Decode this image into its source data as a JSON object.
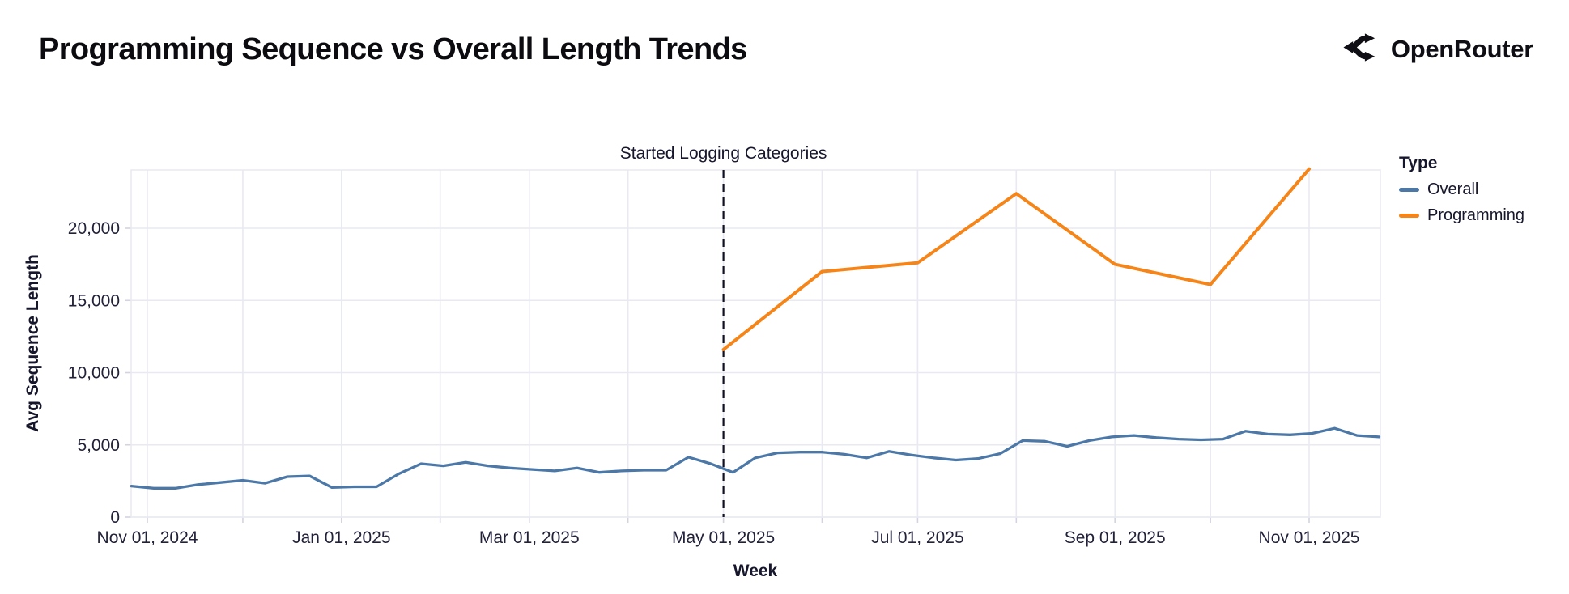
{
  "header": {
    "title": "Programming Sequence vs Overall Length Trends",
    "brand": "OpenRouter"
  },
  "chart_data": {
    "type": "line",
    "title": "Programming Sequence vs Overall Length Trends",
    "xlabel": "Week",
    "ylabel": "Avg Sequence Length",
    "ylim": [
      0,
      24100
    ],
    "grid": true,
    "legend_position": "right",
    "legend": {
      "title": "Type",
      "items": [
        {
          "label": "Overall",
          "color": "#4c78a8"
        },
        {
          "label": "Programming",
          "color": "#f58518"
        }
      ]
    },
    "annotation": {
      "text": "Started Logging Categories",
      "date": "2025-05-01"
    },
    "x_ticks": [
      {
        "date": "2024-11-01",
        "label": "Nov 01, 2024"
      },
      {
        "date": "2025-01-01",
        "label": "Jan 01, 2025"
      },
      {
        "date": "2025-03-01",
        "label": "Mar 01, 2025"
      },
      {
        "date": "2025-05-01",
        "label": "May 01, 2025"
      },
      {
        "date": "2025-07-01",
        "label": "Jul 01, 2025"
      },
      {
        "date": "2025-09-01",
        "label": "Sep 01, 2025"
      },
      {
        "date": "2025-11-01",
        "label": "Nov 01, 2025"
      }
    ],
    "y_ticks": [
      {
        "value": 0,
        "label": "0"
      },
      {
        "value": 5000,
        "label": "5,000"
      },
      {
        "value": 10000,
        "label": "10,000"
      },
      {
        "value": 15000,
        "label": "15,000"
      },
      {
        "value": 20000,
        "label": "20,000"
      }
    ],
    "series": [
      {
        "name": "Overall",
        "color": "#4c78a8",
        "points": [
          {
            "date": "2024-10-27",
            "value": 2150
          },
          {
            "date": "2024-11-03",
            "value": 2000
          },
          {
            "date": "2024-11-10",
            "value": 2000
          },
          {
            "date": "2024-11-17",
            "value": 2250
          },
          {
            "date": "2024-11-24",
            "value": 2400
          },
          {
            "date": "2024-12-01",
            "value": 2550
          },
          {
            "date": "2024-12-08",
            "value": 2350
          },
          {
            "date": "2024-12-15",
            "value": 2800
          },
          {
            "date": "2024-12-22",
            "value": 2850
          },
          {
            "date": "2024-12-29",
            "value": 2050
          },
          {
            "date": "2025-01-05",
            "value": 2100
          },
          {
            "date": "2025-01-12",
            "value": 2100
          },
          {
            "date": "2025-01-19",
            "value": 3000
          },
          {
            "date": "2025-01-26",
            "value": 3700
          },
          {
            "date": "2025-02-02",
            "value": 3550
          },
          {
            "date": "2025-02-09",
            "value": 3800
          },
          {
            "date": "2025-02-16",
            "value": 3550
          },
          {
            "date": "2025-02-23",
            "value": 3400
          },
          {
            "date": "2025-03-02",
            "value": 3300
          },
          {
            "date": "2025-03-09",
            "value": 3200
          },
          {
            "date": "2025-03-16",
            "value": 3400
          },
          {
            "date": "2025-03-23",
            "value": 3100
          },
          {
            "date": "2025-03-30",
            "value": 3200
          },
          {
            "date": "2025-04-06",
            "value": 3250
          },
          {
            "date": "2025-04-13",
            "value": 3250
          },
          {
            "date": "2025-04-20",
            "value": 4150
          },
          {
            "date": "2025-04-27",
            "value": 3700
          },
          {
            "date": "2025-05-04",
            "value": 3100
          },
          {
            "date": "2025-05-11",
            "value": 4100
          },
          {
            "date": "2025-05-18",
            "value": 4450
          },
          {
            "date": "2025-05-25",
            "value": 4500
          },
          {
            "date": "2025-06-01",
            "value": 4500
          },
          {
            "date": "2025-06-08",
            "value": 4350
          },
          {
            "date": "2025-06-15",
            "value": 4100
          },
          {
            "date": "2025-06-22",
            "value": 4550
          },
          {
            "date": "2025-06-29",
            "value": 4300
          },
          {
            "date": "2025-07-06",
            "value": 4100
          },
          {
            "date": "2025-07-13",
            "value": 3950
          },
          {
            "date": "2025-07-20",
            "value": 4050
          },
          {
            "date": "2025-07-27",
            "value": 4400
          },
          {
            "date": "2025-08-03",
            "value": 5300
          },
          {
            "date": "2025-08-10",
            "value": 5250
          },
          {
            "date": "2025-08-17",
            "value": 4900
          },
          {
            "date": "2025-08-24",
            "value": 5300
          },
          {
            "date": "2025-08-31",
            "value": 5550
          },
          {
            "date": "2025-09-07",
            "value": 5650
          },
          {
            "date": "2025-09-14",
            "value": 5500
          },
          {
            "date": "2025-09-21",
            "value": 5400
          },
          {
            "date": "2025-09-28",
            "value": 5350
          },
          {
            "date": "2025-10-05",
            "value": 5400
          },
          {
            "date": "2025-10-12",
            "value": 5950
          },
          {
            "date": "2025-10-19",
            "value": 5750
          },
          {
            "date": "2025-10-26",
            "value": 5700
          },
          {
            "date": "2025-11-02",
            "value": 5800
          },
          {
            "date": "2025-11-09",
            "value": 6150
          },
          {
            "date": "2025-11-16",
            "value": 5650
          },
          {
            "date": "2025-11-23",
            "value": 5550
          }
        ]
      },
      {
        "name": "Programming",
        "color": "#f58518",
        "points": [
          {
            "date": "2025-05-01",
            "value": 11600
          },
          {
            "date": "2025-06-01",
            "value": 17000
          },
          {
            "date": "2025-07-01",
            "value": 17600
          },
          {
            "date": "2025-08-01",
            "value": 22400
          },
          {
            "date": "2025-09-01",
            "value": 17500
          },
          {
            "date": "2025-10-01",
            "value": 16100
          },
          {
            "date": "2025-11-01",
            "value": 24100
          }
        ]
      }
    ]
  }
}
